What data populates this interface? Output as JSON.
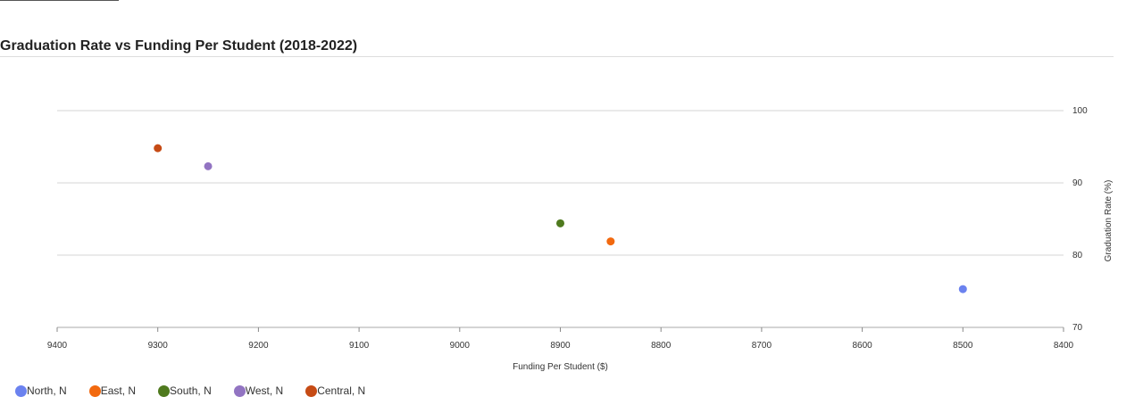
{
  "chart_data": {
    "type": "scatter",
    "title": "Graduation Rate vs Funding Per Student (2018-2022)",
    "xlabel": "Funding Per Student ($)",
    "ylabel": "Graduation Rate (%)",
    "xlim": [
      9400,
      8400
    ],
    "x_reversed": true,
    "ylim": [
      70,
      100
    ],
    "x_ticks": [
      9400,
      9300,
      9200,
      9100,
      9000,
      8900,
      8800,
      8700,
      8600,
      8500,
      8400
    ],
    "y_ticks": [
      70,
      80,
      90,
      100
    ],
    "y_axis_side": "right",
    "grid": "horizontal",
    "legend_position": "bottom-left",
    "series": [
      {
        "name": "North, N",
        "color": "#6b82ef",
        "points": [
          {
            "x": 8500,
            "y": 75.3
          }
        ]
      },
      {
        "name": "East, N",
        "color": "#f2690f",
        "points": [
          {
            "x": 8850,
            "y": 81.9
          }
        ]
      },
      {
        "name": "South, N",
        "color": "#4f7a1e",
        "points": [
          {
            "x": 8900,
            "y": 84.4
          }
        ]
      },
      {
        "name": "West, N",
        "color": "#9274c2",
        "points": [
          {
            "x": 9250,
            "y": 92.3
          }
        ]
      },
      {
        "name": "Central, N",
        "color": "#c64b15",
        "points": [
          {
            "x": 9300,
            "y": 94.8
          }
        ]
      }
    ]
  }
}
